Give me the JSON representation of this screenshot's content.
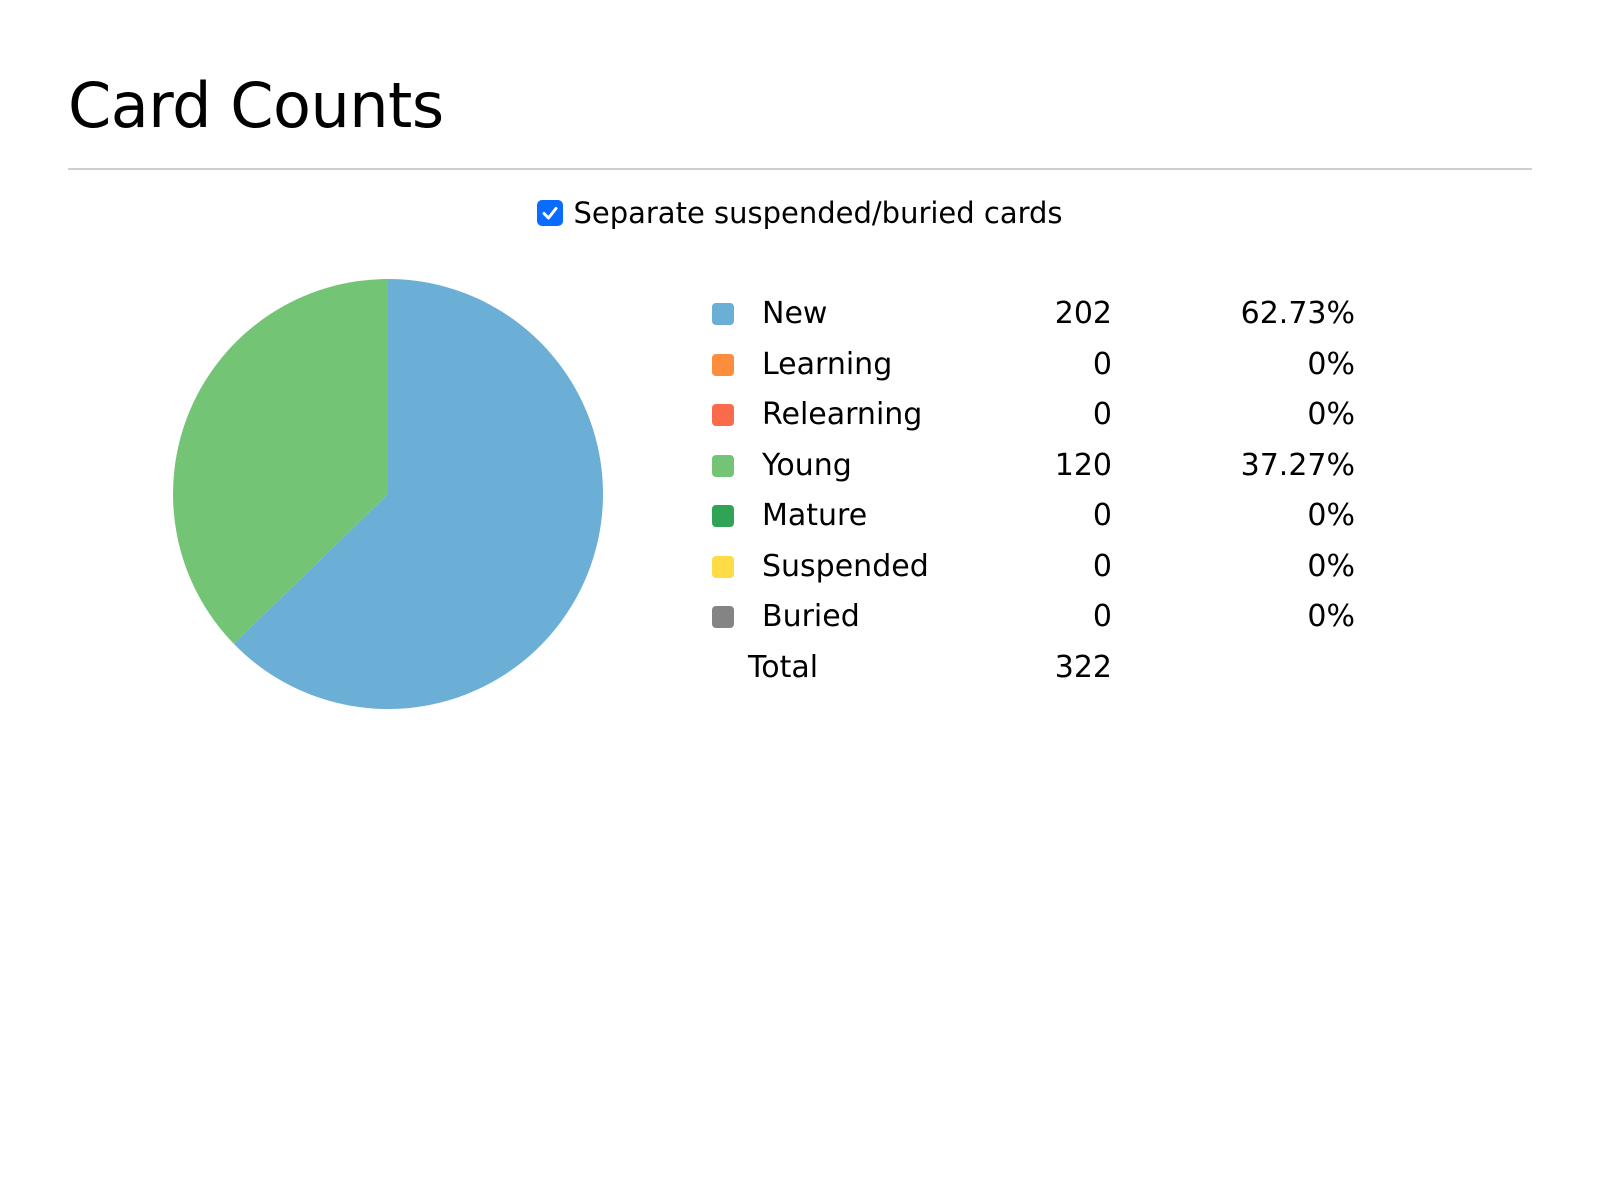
{
  "page": {
    "title": "Card Counts",
    "separate_toggle": {
      "label": "Separate suspended/buried cards",
      "checked": true
    }
  },
  "chart_data": {
    "type": "pie",
    "title": "Card Counts",
    "categories": [
      "New",
      "Learning",
      "Relearning",
      "Young",
      "Mature",
      "Suspended",
      "Buried"
    ],
    "values": [
      202,
      0,
      0,
      120,
      0,
      0,
      0
    ],
    "percent_labels": [
      "62.73%",
      "0%",
      "0%",
      "37.27%",
      "0%",
      "0%",
      "0%"
    ],
    "colors": [
      "#6baed6",
      "#fd8d3c",
      "#fb6a4a",
      "#74c476",
      "#31a354",
      "#fddc46",
      "#848484"
    ],
    "total_label": "Total",
    "total": 322,
    "legend_placement": "right"
  }
}
